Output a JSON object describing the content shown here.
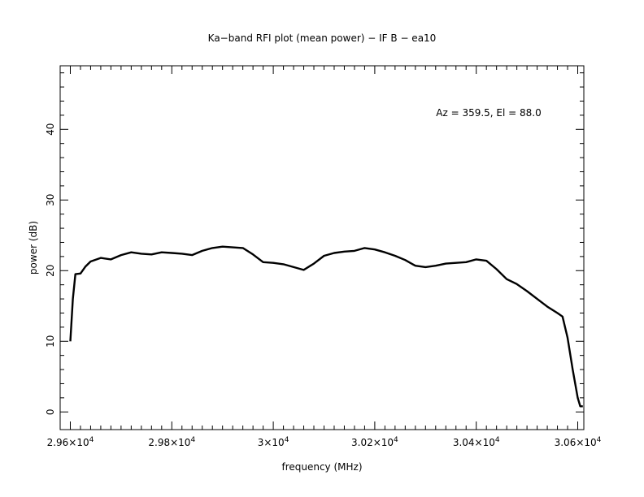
{
  "chart_data": {
    "type": "line",
    "title": "Ka−band RFI plot (mean power) − IF B − ea10",
    "xlabel": "frequency (MHz)",
    "ylabel": "power (dB)",
    "annotation": "Az = 359.5, El = 88.0",
    "xlim": [
      29580,
      30612
    ],
    "ylim": [
      -2.5,
      49
    ],
    "x_ticks": [
      {
        "value": 29600,
        "mantissa": "2.96×10",
        "exp": "4"
      },
      {
        "value": 29800,
        "mantissa": "2.98×10",
        "exp": "4"
      },
      {
        "value": 30000,
        "mantissa": "3×10",
        "exp": "4"
      },
      {
        "value": 30200,
        "mantissa": "3.02×10",
        "exp": "4"
      },
      {
        "value": 30400,
        "mantissa": "3.04×10",
        "exp": "4"
      },
      {
        "value": 30600,
        "mantissa": "3.06×10",
        "exp": "4"
      }
    ],
    "y_ticks": [
      0,
      10,
      20,
      30,
      40
    ],
    "grid": false,
    "line_color": "#000000",
    "series": [
      {
        "x": [
          29600,
          29605,
          29610,
          29620,
          29630,
          29640,
          29660,
          29680,
          29700,
          29720,
          29740,
          29760,
          29780,
          29800,
          29820,
          29840,
          29860,
          29880,
          29900,
          29920,
          29940,
          29960,
          29980,
          30000,
          30020,
          30040,
          30060,
          30080,
          30100,
          30120,
          30140,
          30160,
          30180,
          30200,
          30220,
          30240,
          30260,
          30280,
          30300,
          30320,
          30340,
          30360,
          30380,
          30400,
          30420,
          30440,
          30460,
          30480,
          30500,
          30520,
          30540,
          30560,
          30570,
          30580,
          30590,
          30600,
          30605,
          30610
        ],
        "y": [
          10,
          16,
          19.5,
          19.6,
          20.6,
          21.3,
          21.8,
          21.6,
          22.2,
          22.6,
          22.4,
          22.3,
          22.6,
          22.5,
          22.4,
          22.2,
          22.8,
          23.2,
          23.4,
          23.3,
          23.2,
          22.3,
          21.2,
          21.1,
          20.9,
          20.5,
          20.1,
          21.0,
          22.1,
          22.5,
          22.7,
          22.8,
          23.2,
          23.0,
          22.6,
          22.1,
          21.5,
          20.7,
          20.5,
          20.7,
          21.0,
          21.1,
          21.2,
          21.6,
          21.4,
          20.2,
          18.8,
          18.1,
          17.1,
          16.0,
          14.9,
          14.0,
          13.5,
          10.5,
          6.0,
          2.0,
          0.8,
          0.8
        ]
      }
    ]
  }
}
